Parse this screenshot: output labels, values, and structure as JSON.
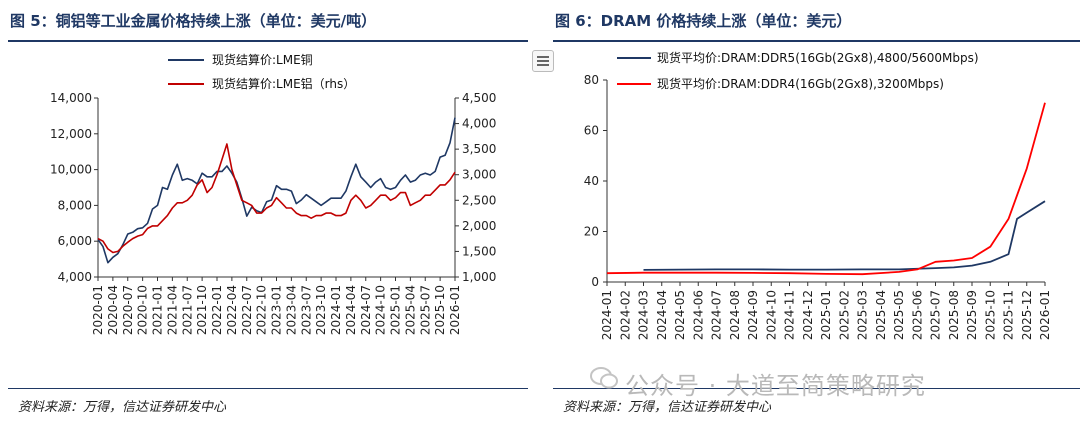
{
  "left_panel": {
    "title": "图 5：铜铝等工业金属价格持续上涨（单位：美元/吨）",
    "source": "资料来源：万得，信达证券研发中心"
  },
  "right_panel": {
    "title": "图 6：DRAM 价格持续上涨（单位：美元）",
    "source": "资料来源：万得，信达证券研发中心"
  },
  "watermark": "公众号 · 大道至简策略研究",
  "chart_data": [
    {
      "type": "line",
      "x_ticks": [
        "2020-01",
        "2020-04",
        "2020-07",
        "2020-10",
        "2021-01",
        "2021-04",
        "2021-07",
        "2021-10",
        "2022-01",
        "2022-04",
        "2022-07",
        "2022-10",
        "2023-01",
        "2023-04",
        "2023-07",
        "2023-10",
        "2024-01",
        "2024-04",
        "2024-07",
        "2024-10",
        "2025-01",
        "2025-04",
        "2025-07",
        "2025-10",
        "2026-01"
      ],
      "y_left": {
        "ticks": [
          "4,000",
          "6,000",
          "8,000",
          "10,000",
          "12,000",
          "14,000"
        ],
        "lim": [
          4000,
          14000
        ]
      },
      "y_right": {
        "ticks": [
          "1,000",
          "1,500",
          "2,000",
          "2,500",
          "3,000",
          "3,500",
          "4,000",
          "4,500"
        ],
        "lim": [
          1000,
          4500
        ]
      },
      "series": [
        {
          "name": "现货结算价:LME铜",
          "color": "#1f3864",
          "axis": "left",
          "x": [
            "2020-01",
            "2020-02",
            "2020-03",
            "2020-04",
            "2020-05",
            "2020-06",
            "2020-07",
            "2020-08",
            "2020-09",
            "2020-10",
            "2020-11",
            "2020-12",
            "2021-01",
            "2021-02",
            "2021-03",
            "2021-04",
            "2021-05",
            "2021-06",
            "2021-07",
            "2021-08",
            "2021-09",
            "2021-10",
            "2021-11",
            "2021-12",
            "2022-01",
            "2022-02",
            "2022-03",
            "2022-04",
            "2022-05",
            "2022-06",
            "2022-07",
            "2022-08",
            "2022-09",
            "2022-10",
            "2022-11",
            "2022-12",
            "2023-01",
            "2023-02",
            "2023-03",
            "2023-04",
            "2023-05",
            "2023-06",
            "2023-07",
            "2023-08",
            "2023-09",
            "2023-10",
            "2023-11",
            "2023-12",
            "2024-01",
            "2024-02",
            "2024-03",
            "2024-04",
            "2024-05",
            "2024-06",
            "2024-07",
            "2024-08",
            "2024-09",
            "2024-10",
            "2024-11",
            "2024-12",
            "2025-01",
            "2025-02",
            "2025-03",
            "2025-04",
            "2025-05",
            "2025-06",
            "2025-07",
            "2025-08",
            "2025-09",
            "2025-10",
            "2025-11",
            "2025-12",
            "2026-01"
          ],
          "values": [
            6100,
            5700,
            4800,
            5100,
            5300,
            5800,
            6400,
            6500,
            6700,
            6750,
            7000,
            7800,
            8000,
            9000,
            8900,
            9700,
            10300,
            9400,
            9500,
            9400,
            9200,
            9800,
            9600,
            9600,
            9900,
            9900,
            10200,
            9800,
            9300,
            8400,
            7400,
            7900,
            7700,
            7600,
            8200,
            8300,
            9100,
            8900,
            8900,
            8800,
            8100,
            8300,
            8600,
            8400,
            8200,
            8000,
            8200,
            8400,
            8400,
            8400,
            8800,
            9600,
            10300,
            9600,
            9300,
            9000,
            9300,
            9500,
            9000,
            8900,
            9000,
            9400,
            9700,
            9300,
            9400,
            9700,
            9800,
            9700,
            9900,
            10700,
            10800,
            11500,
            12900
          ]
        },
        {
          "name": "现货结算价:LME铝（rhs）",
          "color": "#c00000",
          "axis": "right",
          "x": [
            "2020-01",
            "2020-02",
            "2020-03",
            "2020-04",
            "2020-05",
            "2020-06",
            "2020-07",
            "2020-08",
            "2020-09",
            "2020-10",
            "2020-11",
            "2020-12",
            "2021-01",
            "2021-02",
            "2021-03",
            "2021-04",
            "2021-05",
            "2021-06",
            "2021-07",
            "2021-08",
            "2021-09",
            "2021-10",
            "2021-11",
            "2021-12",
            "2022-01",
            "2022-02",
            "2022-03",
            "2022-04",
            "2022-05",
            "2022-06",
            "2022-07",
            "2022-08",
            "2022-09",
            "2022-10",
            "2022-11",
            "2022-12",
            "2023-01",
            "2023-02",
            "2023-03",
            "2023-04",
            "2023-05",
            "2023-06",
            "2023-07",
            "2023-08",
            "2023-09",
            "2023-10",
            "2023-11",
            "2023-12",
            "2024-01",
            "2024-02",
            "2024-03",
            "2024-04",
            "2024-05",
            "2024-06",
            "2024-07",
            "2024-08",
            "2024-09",
            "2024-10",
            "2024-11",
            "2024-12",
            "2025-01",
            "2025-02",
            "2025-03",
            "2025-04",
            "2025-05",
            "2025-06",
            "2025-07",
            "2025-08",
            "2025-09",
            "2025-10",
            "2025-11",
            "2025-12",
            "2026-01"
          ],
          "values": [
            1750,
            1700,
            1550,
            1480,
            1500,
            1600,
            1680,
            1750,
            1800,
            1830,
            1950,
            2000,
            2000,
            2100,
            2200,
            2350,
            2450,
            2450,
            2500,
            2600,
            2800,
            2900,
            2650,
            2750,
            3000,
            3300,
            3600,
            3100,
            2800,
            2500,
            2450,
            2400,
            2250,
            2250,
            2350,
            2400,
            2550,
            2450,
            2350,
            2350,
            2250,
            2200,
            2200,
            2150,
            2200,
            2200,
            2250,
            2250,
            2200,
            2200,
            2250,
            2500,
            2600,
            2500,
            2350,
            2400,
            2500,
            2600,
            2600,
            2500,
            2550,
            2650,
            2650,
            2400,
            2450,
            2500,
            2600,
            2600,
            2700,
            2800,
            2800,
            2900,
            3050
          ]
        }
      ]
    },
    {
      "type": "line",
      "x_ticks": [
        "2024-01",
        "2024-02",
        "2024-03",
        "2024-04",
        "2024-05",
        "2024-06",
        "2024-07",
        "2024-08",
        "2024-09",
        "2024-10",
        "2024-11",
        "2024-12",
        "2025-01",
        "2025-02",
        "2025-03",
        "2025-04",
        "2025-05",
        "2025-06",
        "2025-07",
        "2025-08",
        "2025-09",
        "2025-10",
        "2025-11",
        "2025-12",
        "2026-01"
      ],
      "y": {
        "ticks": [
          "0",
          "20",
          "40",
          "60",
          "80"
        ],
        "lim": [
          0,
          80
        ]
      },
      "series": [
        {
          "name": "现货平均价:DRAM:DDR5(16Gb(2Gx8),4800/5600Mbps)",
          "color": "#1f3864",
          "x": [
            "2024-03",
            "2024-05",
            "2024-07",
            "2024-09",
            "2024-11",
            "2025-01",
            "2025-03",
            "2025-05",
            "2025-07",
            "2025-08",
            "2025-09",
            "2025-10",
            "2025-11",
            "2025-11-15",
            "2025-12",
            "2026-01"
          ],
          "values": [
            4.8,
            4.9,
            5.0,
            5.0,
            4.9,
            4.9,
            5.0,
            5.0,
            5.5,
            5.8,
            6.5,
            8.0,
            11.0,
            25.0,
            27.5,
            32.0
          ]
        },
        {
          "name": "现货平均价:DRAM:DDR4(16Gb(2Gx8),3200Mbps)",
          "color": "#ff0000",
          "x": [
            "2024-01",
            "2024-03",
            "2024-05",
            "2024-07",
            "2024-09",
            "2024-11",
            "2025-01",
            "2025-03",
            "2025-05",
            "2025-06",
            "2025-07",
            "2025-08",
            "2025-09",
            "2025-10",
            "2025-11",
            "2025-12",
            "2026-01"
          ],
          "values": [
            3.5,
            3.7,
            3.7,
            3.7,
            3.6,
            3.5,
            3.2,
            3.1,
            4.0,
            5.0,
            8.0,
            8.5,
            9.5,
            14.0,
            25.0,
            45.0,
            71.0
          ]
        }
      ]
    }
  ]
}
